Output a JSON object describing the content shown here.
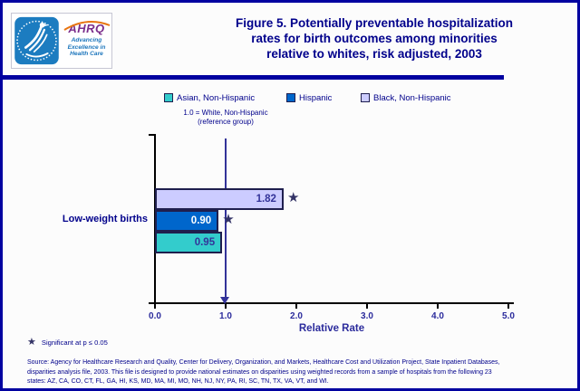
{
  "header": {
    "title_lines": [
      "Figure 5. Potentially preventable hospitalization",
      "rates for birth outcomes among minorities",
      "relative to whites, risk adjusted, 2003"
    ]
  },
  "logo": {
    "ahrq_word": "AHRQ",
    "tagline_lines": [
      "Advancing",
      "Excellence in",
      "Health Care"
    ]
  },
  "legend": {
    "items": [
      {
        "label": "Asian, Non-Hispanic",
        "color": "#33CCCC"
      },
      {
        "label": "Hispanic",
        "color": "#0066CC"
      },
      {
        "label": "Black, Non-Hispanic",
        "color": "#CCCCFF"
      }
    ]
  },
  "reference_note": {
    "line1": "1.0 = White, Non-Hispanic",
    "line2": "(reference group)"
  },
  "chart_data": {
    "type": "bar",
    "orientation": "horizontal",
    "title": "Potentially preventable hospitalization rates for birth outcomes among minorities relative to whites, risk adjusted, 2003",
    "categories": [
      "Low-weight births"
    ],
    "series": [
      {
        "name": "Black, Non-Hispanic",
        "values": [
          1.82
        ],
        "display": "1.82",
        "color": "#CCCCFF",
        "value_text_color": "#333399",
        "significant": true
      },
      {
        "name": "Hispanic",
        "values": [
          0.9
        ],
        "display": "0.90",
        "color": "#0066CC",
        "value_text_color": "#FFFFFF",
        "significant": true
      },
      {
        "name": "Asian, Non-Hispanic",
        "values": [
          0.95
        ],
        "display": "0.95",
        "color": "#33CCCC",
        "value_text_color": "#333399",
        "significant": false
      }
    ],
    "xlabel": "Relative Rate",
    "x_ticks": [
      "0.0",
      "1.0",
      "2.0",
      "3.0",
      "4.0",
      "5.0"
    ],
    "xlim": [
      0,
      5
    ],
    "reference_value": 1.0,
    "grid": false,
    "legend_position": "top"
  },
  "footnote": {
    "star": "★",
    "text": "Significant at p ≤ 0.05"
  },
  "source": {
    "lines": [
      "Source: Agency for Healthcare Research and Quality, Center for Delivery, Organization, and Markets, Healthcare Cost and Utilization Project, State Inpatient Databases,",
      "disparities analysis file, 2003. This file is designed to provide national estimates on disparities using weighted records from a sample of hospitals from the following 23",
      "states: AZ, CA, CO, CT, FL, GA, HI, KS, MD, MA, MI, MO, NH, NJ, NY, PA, RI, SC, TN, TX, VA, VT, and WI."
    ]
  }
}
